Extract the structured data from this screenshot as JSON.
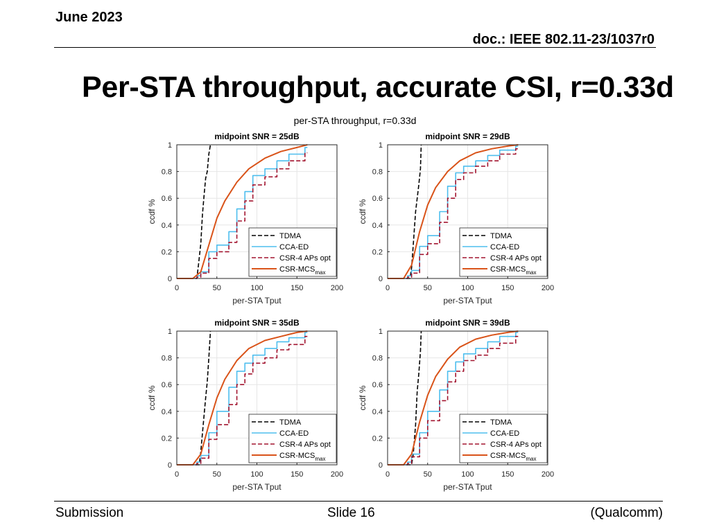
{
  "header": {
    "date": "June 2023",
    "doc": "doc.: IEEE 802.11-23/1037r0"
  },
  "slide_title": "Per-STA throughput, accurate CSI, r=0.33d",
  "footer": {
    "left": "Submission",
    "center": "Slide 16",
    "right": "(Qualcomm)"
  },
  "figure_title": "per-STA throughput, r=0.33d",
  "colors": {
    "tdma": "#000000",
    "cca": "#4DBEEE",
    "csr4": "#A2142F",
    "csrmcs": "#D95319"
  },
  "chart_data": [
    {
      "type": "line",
      "title": "midpoint SNR = 25dB",
      "xlabel": "per-STA Tput",
      "ylabel": "ccdf %",
      "xlim": [
        0,
        200
      ],
      "ylim": [
        0,
        1
      ],
      "xticks": [
        "0",
        "50",
        "100",
        "150",
        "200"
      ],
      "yticks": [
        "0",
        "0.2",
        "0.4",
        "0.6",
        "0.8",
        "1"
      ],
      "grid": true,
      "legend_position": "bottom-right",
      "series": [
        {
          "name": "TDMA",
          "x": [
            0,
            25,
            27,
            30,
            32,
            34,
            36,
            38,
            40,
            42,
            42
          ],
          "y": [
            0,
            0,
            0.1,
            0.26,
            0.48,
            0.62,
            0.75,
            0.8,
            0.93,
            1,
            1
          ]
        },
        {
          "name": "CCA-ED",
          "x": [
            0,
            25,
            25,
            30,
            30,
            40,
            40,
            50,
            50,
            65,
            65,
            75,
            75,
            85,
            85,
            95,
            95,
            110,
            110,
            125,
            125,
            140,
            140,
            160,
            160,
            163
          ],
          "y": [
            0,
            0,
            0.02,
            0.02,
            0.05,
            0.05,
            0.2,
            0.2,
            0.25,
            0.25,
            0.35,
            0.35,
            0.52,
            0.52,
            0.65,
            0.65,
            0.77,
            0.77,
            0.82,
            0.82,
            0.88,
            0.88,
            0.93,
            0.93,
            0.98,
            0.98
          ]
        },
        {
          "name": "CSR-4 APs opt",
          "x": [
            0,
            25,
            25,
            30,
            30,
            40,
            40,
            50,
            50,
            65,
            65,
            75,
            75,
            85,
            85,
            95,
            95,
            110,
            110,
            125,
            125,
            140,
            140,
            160,
            160,
            163
          ],
          "y": [
            0,
            0,
            0.01,
            0.01,
            0.04,
            0.04,
            0.15,
            0.15,
            0.2,
            0.2,
            0.27,
            0.27,
            0.43,
            0.43,
            0.58,
            0.58,
            0.7,
            0.7,
            0.76,
            0.76,
            0.82,
            0.82,
            0.88,
            0.88,
            0.94,
            0.94
          ]
        },
        {
          "name": "CSR-MCS",
          "name_sub": "max",
          "x": [
            0,
            20,
            30,
            40,
            50,
            60,
            75,
            90,
            110,
            130,
            150,
            163
          ],
          "y": [
            0,
            0,
            0.05,
            0.25,
            0.45,
            0.58,
            0.72,
            0.82,
            0.9,
            0.95,
            0.98,
            1
          ]
        }
      ]
    },
    {
      "type": "line",
      "title": "midpoint SNR = 29dB",
      "xlabel": "per-STA Tput",
      "ylabel": "ccdf %",
      "xlim": [
        0,
        200
      ],
      "ylim": [
        0,
        1
      ],
      "xticks": [
        "0",
        "50",
        "100",
        "150",
        "200"
      ],
      "yticks": [
        "0",
        "0.2",
        "0.4",
        "0.6",
        "0.8",
        "1"
      ],
      "grid": true,
      "legend_position": "bottom-right",
      "series": [
        {
          "name": "TDMA",
          "x": [
            0,
            28,
            30,
            32,
            35,
            37,
            39,
            41,
            42,
            42
          ],
          "y": [
            0,
            0,
            0.08,
            0.25,
            0.5,
            0.6,
            0.7,
            0.82,
            1,
            1
          ]
        },
        {
          "name": "CCA-ED",
          "x": [
            0,
            25,
            25,
            30,
            30,
            40,
            40,
            50,
            50,
            65,
            65,
            75,
            75,
            85,
            85,
            95,
            95,
            110,
            110,
            125,
            125,
            140,
            140,
            160,
            160,
            163
          ],
          "y": [
            0,
            0,
            0.02,
            0.02,
            0.06,
            0.06,
            0.24,
            0.24,
            0.32,
            0.32,
            0.5,
            0.5,
            0.69,
            0.69,
            0.79,
            0.79,
            0.84,
            0.84,
            0.88,
            0.88,
            0.92,
            0.92,
            0.96,
            0.96,
            0.99,
            0.99
          ]
        },
        {
          "name": "CSR-4 APs opt",
          "x": [
            0,
            25,
            25,
            30,
            30,
            40,
            40,
            50,
            50,
            65,
            65,
            75,
            75,
            85,
            85,
            95,
            95,
            110,
            110,
            125,
            125,
            140,
            140,
            160,
            160,
            163
          ],
          "y": [
            0,
            0,
            0.01,
            0.01,
            0.04,
            0.04,
            0.18,
            0.18,
            0.26,
            0.26,
            0.42,
            0.42,
            0.6,
            0.6,
            0.74,
            0.74,
            0.79,
            0.79,
            0.84,
            0.84,
            0.88,
            0.88,
            0.93,
            0.93,
            0.97,
            0.97
          ]
        },
        {
          "name": "CSR-MCS",
          "name_sub": "max",
          "x": [
            0,
            20,
            30,
            40,
            50,
            60,
            75,
            90,
            110,
            130,
            150,
            163
          ],
          "y": [
            0,
            0,
            0.1,
            0.35,
            0.55,
            0.68,
            0.8,
            0.88,
            0.94,
            0.97,
            0.99,
            1
          ]
        }
      ]
    },
    {
      "type": "line",
      "title": "midpoint SNR = 35dB",
      "xlabel": "per-STA Tput",
      "ylabel": "ccdf %",
      "xlim": [
        0,
        200
      ],
      "ylim": [
        0,
        1
      ],
      "xticks": [
        "0",
        "50",
        "100",
        "150",
        "200"
      ],
      "yticks": [
        "0",
        "0.2",
        "0.4",
        "0.6",
        "0.8",
        "1"
      ],
      "grid": true,
      "legend_position": "bottom-right",
      "series": [
        {
          "name": "TDMA",
          "x": [
            0,
            28,
            30,
            33,
            36,
            38,
            40,
            42,
            42
          ],
          "y": [
            0,
            0,
            0.1,
            0.3,
            0.5,
            0.62,
            0.8,
            1,
            1
          ]
        },
        {
          "name": "CCA-ED",
          "x": [
            0,
            25,
            25,
            30,
            30,
            40,
            40,
            50,
            50,
            65,
            65,
            75,
            75,
            85,
            85,
            95,
            95,
            110,
            110,
            125,
            125,
            140,
            140,
            160,
            160,
            163
          ],
          "y": [
            0,
            0,
            0.02,
            0.02,
            0.07,
            0.07,
            0.24,
            0.24,
            0.4,
            0.4,
            0.58,
            0.58,
            0.7,
            0.7,
            0.76,
            0.76,
            0.82,
            0.82,
            0.87,
            0.87,
            0.92,
            0.92,
            0.95,
            0.95,
            0.99,
            0.99
          ]
        },
        {
          "name": "CSR-4 APs opt",
          "x": [
            0,
            25,
            25,
            30,
            30,
            40,
            40,
            50,
            50,
            65,
            65,
            75,
            75,
            85,
            85,
            95,
            95,
            110,
            110,
            125,
            125,
            140,
            140,
            160,
            160,
            163
          ],
          "y": [
            0,
            0,
            0.01,
            0.01,
            0.05,
            0.05,
            0.19,
            0.19,
            0.3,
            0.3,
            0.45,
            0.45,
            0.6,
            0.6,
            0.68,
            0.68,
            0.76,
            0.76,
            0.8,
            0.8,
            0.86,
            0.86,
            0.9,
            0.9,
            0.96,
            0.96
          ]
        },
        {
          "name": "CSR-MCS",
          "name_sub": "max",
          "x": [
            0,
            20,
            30,
            40,
            50,
            60,
            75,
            90,
            110,
            130,
            150,
            163
          ],
          "y": [
            0,
            0,
            0.08,
            0.3,
            0.5,
            0.64,
            0.78,
            0.87,
            0.93,
            0.96,
            0.99,
            1
          ]
        }
      ]
    },
    {
      "type": "line",
      "title": "midpoint SNR = 39dB",
      "xlabel": "per-STA Tput",
      "ylabel": "ccdf %",
      "xlim": [
        0,
        200
      ],
      "ylim": [
        0,
        1
      ],
      "xticks": [
        "0",
        "50",
        "100",
        "150",
        "200"
      ],
      "yticks": [
        "0",
        "0.2",
        "0.4",
        "0.6",
        "0.8",
        "1"
      ],
      "grid": true,
      "legend_position": "bottom-right",
      "series": [
        {
          "name": "TDMA",
          "x": [
            0,
            30,
            32,
            35,
            37,
            39,
            41,
            42,
            42
          ],
          "y": [
            0,
            0,
            0.08,
            0.3,
            0.55,
            0.68,
            0.85,
            1,
            1
          ]
        },
        {
          "name": "CCA-ED",
          "x": [
            0,
            25,
            25,
            30,
            30,
            40,
            40,
            50,
            50,
            65,
            65,
            75,
            75,
            85,
            85,
            95,
            95,
            110,
            110,
            125,
            125,
            140,
            140,
            160,
            160,
            163
          ],
          "y": [
            0,
            0,
            0.02,
            0.02,
            0.08,
            0.08,
            0.24,
            0.24,
            0.4,
            0.4,
            0.56,
            0.56,
            0.7,
            0.7,
            0.77,
            0.77,
            0.83,
            0.83,
            0.87,
            0.87,
            0.92,
            0.92,
            0.96,
            0.96,
            0.99,
            0.99
          ]
        },
        {
          "name": "CSR-4 APs opt",
          "x": [
            0,
            25,
            25,
            30,
            30,
            40,
            40,
            50,
            50,
            65,
            65,
            75,
            75,
            85,
            85,
            95,
            95,
            110,
            110,
            125,
            125,
            140,
            140,
            160,
            160,
            163
          ],
          "y": [
            0,
            0,
            0.01,
            0.01,
            0.06,
            0.06,
            0.2,
            0.2,
            0.33,
            0.33,
            0.48,
            0.48,
            0.62,
            0.62,
            0.7,
            0.7,
            0.78,
            0.78,
            0.82,
            0.82,
            0.87,
            0.87,
            0.91,
            0.91,
            0.96,
            0.96
          ]
        },
        {
          "name": "CSR-MCS",
          "name_sub": "max",
          "x": [
            0,
            20,
            30,
            40,
            50,
            60,
            75,
            90,
            110,
            130,
            150,
            163
          ],
          "y": [
            0,
            0,
            0.08,
            0.32,
            0.52,
            0.66,
            0.79,
            0.88,
            0.94,
            0.97,
            0.99,
            1
          ]
        }
      ]
    }
  ]
}
